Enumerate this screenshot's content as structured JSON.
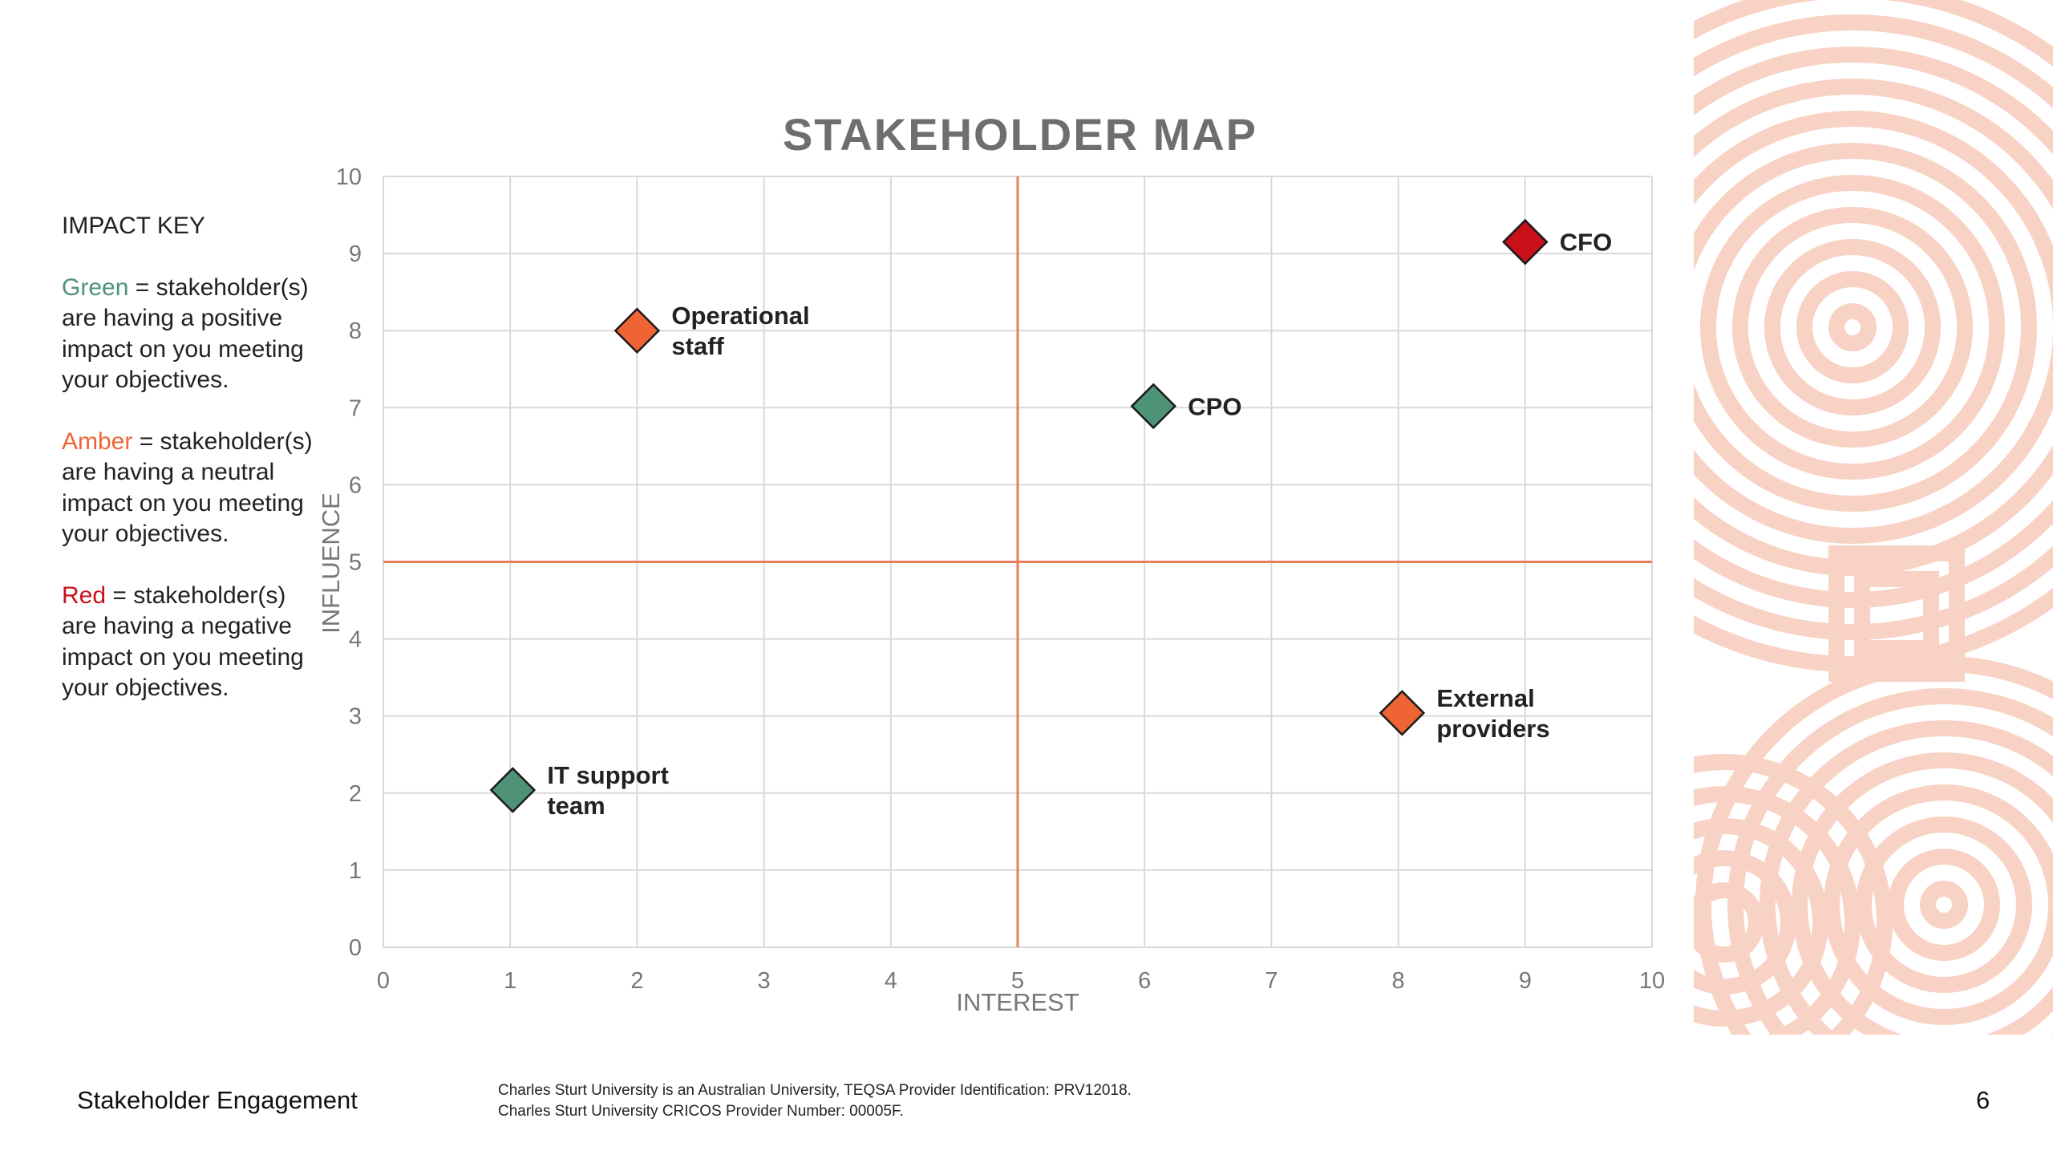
{
  "chart_data": {
    "type": "scatter",
    "title": "STAKEHOLDER MAP",
    "xlabel": "INTEREST",
    "ylabel": "INFLUENCE",
    "xlim": [
      0,
      10
    ],
    "ylim": [
      0,
      10
    ],
    "xticks": [
      "0",
      "1",
      "2",
      "3",
      "4",
      "5",
      "6",
      "7",
      "8",
      "9",
      "10"
    ],
    "yticks": [
      "0",
      "1",
      "2",
      "3",
      "4",
      "5",
      "6",
      "7",
      "8",
      "9",
      "10"
    ],
    "grid": true,
    "reference_lines": {
      "x": 5,
      "y": 5,
      "color": "#ee7d5b"
    },
    "points": [
      {
        "label": [
          "Operational",
          "staff"
        ],
        "x": 2,
        "y": 8,
        "impact": "amber"
      },
      {
        "label": [
          "CFO"
        ],
        "x": 9,
        "y": 9.15,
        "impact": "red"
      },
      {
        "label": [
          "CPO"
        ],
        "x": 6.07,
        "y": 7.02,
        "impact": "green"
      },
      {
        "label": [
          "External",
          "providers"
        ],
        "x": 8.03,
        "y": 3.04,
        "impact": "amber"
      },
      {
        "label": [
          "IT support",
          "team"
        ],
        "x": 1.02,
        "y": 2.04,
        "impact": "green"
      }
    ]
  },
  "colors": {
    "green": "#4e9278",
    "amber": "#ee6434",
    "red": "#c8111b",
    "reference": "#ee7d5b",
    "grid": "#d9d9d9",
    "title": "#6e6e6e",
    "decor": "#f8d2c4"
  },
  "impact_key": {
    "title": "IMPACT KEY",
    "green_word": "Green",
    "green_text": " = stakeholder(s) are having a positive impact on you meeting your objectives.",
    "amber_word": "Amber",
    "amber_text": " = stakeholder(s) are having a neutral impact on you meeting your objectives.",
    "red_word": "Red",
    "red_text": " = stakeholder(s) are having a negative impact on you meeting your objectives."
  },
  "footer": {
    "left": "Stakeholder Engagement",
    "notice_line1": "Charles Sturt University is an Australian University, TEQSA Provider Identification: PRV12018.",
    "notice_line2": "Charles Sturt University CRICOS Provider Number: 00005F.",
    "page_number": "6"
  }
}
